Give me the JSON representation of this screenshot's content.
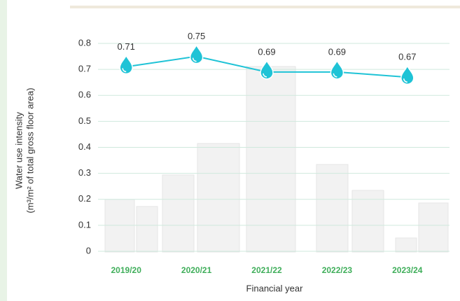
{
  "chart_data": {
    "type": "line",
    "y_label": [
      "Water use intensity",
      "(m³/m² of total gross floor area)"
    ],
    "x_label": "Financial year",
    "categories": [
      "2019/20",
      "2020/21",
      "2021/22",
      "2022/23",
      "2023/24"
    ],
    "series": [
      {
        "name": "Water use intensity",
        "color": "#1fc3d6",
        "values": [
          0.71,
          0.75,
          0.69,
          0.69,
          0.67
        ]
      }
    ],
    "ylim": [
      0,
      0.8
    ],
    "yticks": [
      0,
      0.1,
      0.2,
      0.3,
      0.4,
      0.5,
      0.6,
      0.7,
      0.8
    ],
    "grid": true
  }
}
